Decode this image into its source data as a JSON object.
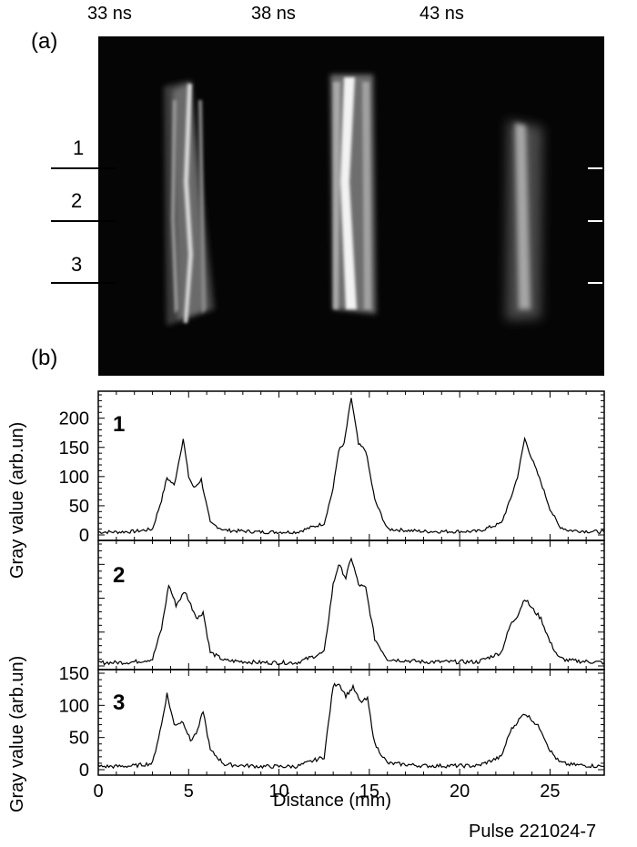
{
  "panel_a_label": "(a)",
  "panel_b_label": "(b)",
  "time_labels": [
    "33 ns",
    "38 ns",
    "43 ns"
  ],
  "row_labels": [
    "1",
    "2",
    "3"
  ],
  "ylabel": "Gray value (arb.un)",
  "xlabel": "Distance (mm)",
  "pulse_label": "Pulse 221024-7",
  "chart_data": [
    {
      "type": "line",
      "panel": "1",
      "x": [
        0,
        1,
        2,
        3,
        3.5,
        3.8,
        4.2,
        4.7,
        5.0,
        5.3,
        5.7,
        6.2,
        7,
        9,
        11,
        12.5,
        13.0,
        13.3,
        13.6,
        14.0,
        14.4,
        14.8,
        15.3,
        16,
        18,
        21,
        22.3,
        22.8,
        23.2,
        23.6,
        24.0,
        24.5,
        25.0,
        25.5,
        26,
        28
      ],
      "y": [
        5,
        5,
        6,
        10,
        60,
        98,
        85,
        165,
        100,
        80,
        95,
        20,
        8,
        5,
        5,
        20,
        80,
        145,
        155,
        235,
        155,
        145,
        60,
        10,
        6,
        6,
        20,
        60,
        100,
        165,
        130,
        90,
        45,
        15,
        8,
        5
      ],
      "xlim": [
        0,
        28
      ],
      "ylim": [
        0,
        240
      ],
      "yticks": [
        0,
        50,
        100,
        150,
        200
      ]
    },
    {
      "type": "line",
      "panel": "2",
      "x": [
        0,
        1,
        2,
        3,
        3.5,
        3.9,
        4.3,
        4.8,
        5.2,
        5.5,
        5.8,
        6.2,
        7,
        9,
        11,
        12.5,
        13.0,
        13.3,
        13.7,
        14.0,
        14.4,
        14.8,
        15.3,
        16,
        18,
        21,
        22.3,
        22.8,
        23.2,
        23.6,
        24.0,
        24.5,
        25.0,
        25.5,
        26,
        28
      ],
      "y": [
        5,
        5,
        6,
        10,
        55,
        120,
        90,
        110,
        85,
        70,
        80,
        20,
        8,
        5,
        5,
        20,
        120,
        150,
        130,
        160,
        120,
        115,
        40,
        10,
        6,
        6,
        20,
        60,
        75,
        100,
        85,
        70,
        35,
        12,
        8,
        5
      ],
      "xlim": [
        0,
        28
      ],
      "ylim": [
        0,
        180
      ]
    },
    {
      "type": "line",
      "panel": "3",
      "x": [
        0,
        1,
        2,
        3,
        3.5,
        3.8,
        4.2,
        4.7,
        5.1,
        5.5,
        5.8,
        6.2,
        7,
        9,
        11,
        12.5,
        13.0,
        13.3,
        13.7,
        14.1,
        14.5,
        14.9,
        15.3,
        16,
        18,
        21,
        22.3,
        22.8,
        23.2,
        23.6,
        24.0,
        24.5,
        25.0,
        25.5,
        26,
        28
      ],
      "y": [
        5,
        5,
        6,
        10,
        70,
        118,
        70,
        75,
        45,
        60,
        92,
        30,
        8,
        5,
        5,
        20,
        130,
        135,
        115,
        128,
        105,
        110,
        40,
        10,
        6,
        6,
        20,
        60,
        75,
        88,
        78,
        62,
        30,
        12,
        8,
        5
      ],
      "xlim": [
        0,
        28
      ],
      "ylim": [
        0,
        150
      ],
      "yticks": [
        0,
        50,
        100,
        150
      ],
      "xticks": [
        0,
        5,
        10,
        15,
        20,
        25
      ]
    }
  ]
}
